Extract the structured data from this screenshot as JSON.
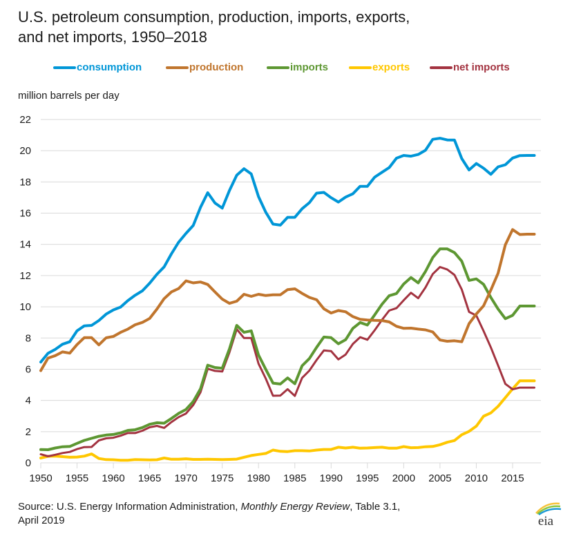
{
  "chart_data": {
    "type": "line",
    "title": "U.S. petroleum consumption, production, imports, exports, and net imports, 1950–2018",
    "title_lines": [
      "U.S. petroleum consumption, production, imports, exports,",
      "and net imports, 1950–2018"
    ],
    "xlabel": "",
    "ylabel": "million barrels per day",
    "ylim": [
      0,
      22
    ],
    "xlim": [
      1950,
      2018
    ],
    "yticks": [
      0,
      2,
      4,
      6,
      8,
      10,
      12,
      14,
      16,
      18,
      20,
      22
    ],
    "xticks": [
      1950,
      1955,
      1960,
      1965,
      1970,
      1975,
      1980,
      1985,
      1990,
      1995,
      2000,
      2005,
      2010,
      2015
    ],
    "grid": true,
    "legend_position": "top",
    "x": [
      1950,
      1951,
      1952,
      1953,
      1954,
      1955,
      1956,
      1957,
      1958,
      1959,
      1960,
      1961,
      1962,
      1963,
      1964,
      1965,
      1966,
      1967,
      1968,
      1969,
      1970,
      1971,
      1972,
      1973,
      1974,
      1975,
      1976,
      1977,
      1978,
      1979,
      1980,
      1981,
      1982,
      1983,
      1984,
      1985,
      1986,
      1987,
      1988,
      1989,
      1990,
      1991,
      1992,
      1993,
      1994,
      1995,
      1996,
      1997,
      1998,
      1999,
      2000,
      2001,
      2002,
      2003,
      2004,
      2005,
      2006,
      2007,
      2008,
      2009,
      2010,
      2011,
      2012,
      2013,
      2014,
      2015,
      2016,
      2017,
      2018
    ],
    "series": [
      {
        "name": "consumption",
        "color": "#0096D7",
        "values": [
          6.46,
          7.02,
          7.27,
          7.6,
          7.76,
          8.46,
          8.78,
          8.81,
          9.12,
          9.53,
          9.8,
          9.98,
          10.4,
          10.74,
          11.02,
          11.51,
          12.08,
          12.56,
          13.39,
          14.14,
          14.7,
          15.21,
          16.37,
          17.31,
          16.65,
          16.32,
          17.46,
          18.43,
          18.85,
          18.51,
          17.06,
          16.06,
          15.3,
          15.23,
          15.73,
          15.73,
          16.28,
          16.67,
          17.28,
          17.33,
          16.99,
          16.71,
          17.03,
          17.24,
          17.72,
          17.72,
          18.31,
          18.62,
          18.92,
          19.52,
          19.7,
          19.65,
          19.76,
          20.03,
          20.73,
          20.8,
          20.69,
          20.68,
          19.5,
          18.77,
          19.18,
          18.88,
          18.49,
          18.97,
          19.1,
          19.53,
          19.69,
          19.7,
          19.7
        ]
      },
      {
        "name": "production",
        "color": "#C0752D",
        "values": [
          5.91,
          6.71,
          6.87,
          7.11,
          7.03,
          7.58,
          8.02,
          8.02,
          7.56,
          8.01,
          8.1,
          8.36,
          8.57,
          8.85,
          9.0,
          9.25,
          9.85,
          10.52,
          10.95,
          11.17,
          11.66,
          11.53,
          11.59,
          11.43,
          10.95,
          10.49,
          10.22,
          10.36,
          10.8,
          10.67,
          10.8,
          10.72,
          10.77,
          10.77,
          11.1,
          11.15,
          10.86,
          10.6,
          10.45,
          9.87,
          9.6,
          9.76,
          9.68,
          9.37,
          9.2,
          9.15,
          9.13,
          9.12,
          9.03,
          8.75,
          8.62,
          8.63,
          8.57,
          8.52,
          8.39,
          7.87,
          7.79,
          7.82,
          7.76,
          8.92,
          9.54,
          10.06,
          11.07,
          12.15,
          13.97,
          14.95,
          14.63,
          14.65,
          14.65
        ]
      },
      {
        "name": "imports",
        "color": "#5D9732",
        "values": [
          0.85,
          0.84,
          0.95,
          1.03,
          1.05,
          1.25,
          1.44,
          1.57,
          1.7,
          1.78,
          1.82,
          1.92,
          2.08,
          2.12,
          2.26,
          2.47,
          2.57,
          2.54,
          2.84,
          3.17,
          3.42,
          3.93,
          4.74,
          6.26,
          6.11,
          6.06,
          7.31,
          8.81,
          8.36,
          8.46,
          6.91,
          5.99,
          5.11,
          5.05,
          5.44,
          5.07,
          6.22,
          6.68,
          7.4,
          8.06,
          8.02,
          7.63,
          7.89,
          8.62,
          8.99,
          8.83,
          9.48,
          10.16,
          10.71,
          10.85,
          11.46,
          11.87,
          11.53,
          12.26,
          13.15,
          13.71,
          13.71,
          13.47,
          12.92,
          11.69,
          11.79,
          11.44,
          10.6,
          9.86,
          9.24,
          9.45,
          10.05,
          10.05,
          10.05
        ]
      },
      {
        "name": "exports",
        "color": "#FFC700",
        "values": [
          0.31,
          0.42,
          0.43,
          0.4,
          0.36,
          0.37,
          0.43,
          0.57,
          0.28,
          0.21,
          0.2,
          0.17,
          0.17,
          0.21,
          0.2,
          0.19,
          0.2,
          0.31,
          0.23,
          0.23,
          0.26,
          0.22,
          0.22,
          0.23,
          0.22,
          0.21,
          0.22,
          0.24,
          0.36,
          0.47,
          0.54,
          0.6,
          0.82,
          0.74,
          0.72,
          0.78,
          0.78,
          0.76,
          0.82,
          0.86,
          0.86,
          1.0,
          0.95,
          1.0,
          0.94,
          0.95,
          0.98,
          1.0,
          0.94,
          0.94,
          1.04,
          0.97,
          0.98,
          1.03,
          1.05,
          1.16,
          1.32,
          1.43,
          1.8,
          2.02,
          2.35,
          2.99,
          3.2,
          3.62,
          4.18,
          4.74,
          5.26,
          5.26,
          5.26
        ]
      },
      {
        "name": "net imports",
        "color": "#A33340",
        "values": [
          0.55,
          0.42,
          0.52,
          0.63,
          0.7,
          0.88,
          1.01,
          1.02,
          1.44,
          1.57,
          1.61,
          1.74,
          1.91,
          1.91,
          2.06,
          2.28,
          2.37,
          2.24,
          2.61,
          2.93,
          3.16,
          3.7,
          4.52,
          6.03,
          5.89,
          5.85,
          7.09,
          8.57,
          8.0,
          8.0,
          6.36,
          5.4,
          4.3,
          4.31,
          4.72,
          4.29,
          5.44,
          5.91,
          6.59,
          7.2,
          7.16,
          6.63,
          6.94,
          7.62,
          8.05,
          7.89,
          8.5,
          9.16,
          9.76,
          9.91,
          10.42,
          10.9,
          10.55,
          11.24,
          12.1,
          12.55,
          12.39,
          12.04,
          11.11,
          9.67,
          9.44,
          8.45,
          7.4,
          6.24,
          5.06,
          4.71,
          4.82,
          4.82,
          4.82
        ]
      }
    ]
  },
  "header": {
    "title_line_1": "U.S. petroleum consumption, production, imports, exports,",
    "title_line_2": "and net imports, 1950–2018"
  },
  "legend": [
    {
      "label": "consumption",
      "color": "#0096D7"
    },
    {
      "label": "production",
      "color": "#C0752D"
    },
    {
      "label": "imports",
      "color": "#5D9732"
    },
    {
      "label": "exports",
      "color": "#FFC700"
    },
    {
      "label": "net imports",
      "color": "#A33340"
    }
  ],
  "unit_label": "million barrels per day",
  "footer": {
    "source_prefix": "Source: U.S. Energy Information Administration, ",
    "source_italic": "Monthly Energy Review",
    "source_suffix": ", Table 3.1,",
    "source_line_2": "April 2019",
    "logo_text": "eia",
    "logo_icon": "eia-logo-icon"
  }
}
